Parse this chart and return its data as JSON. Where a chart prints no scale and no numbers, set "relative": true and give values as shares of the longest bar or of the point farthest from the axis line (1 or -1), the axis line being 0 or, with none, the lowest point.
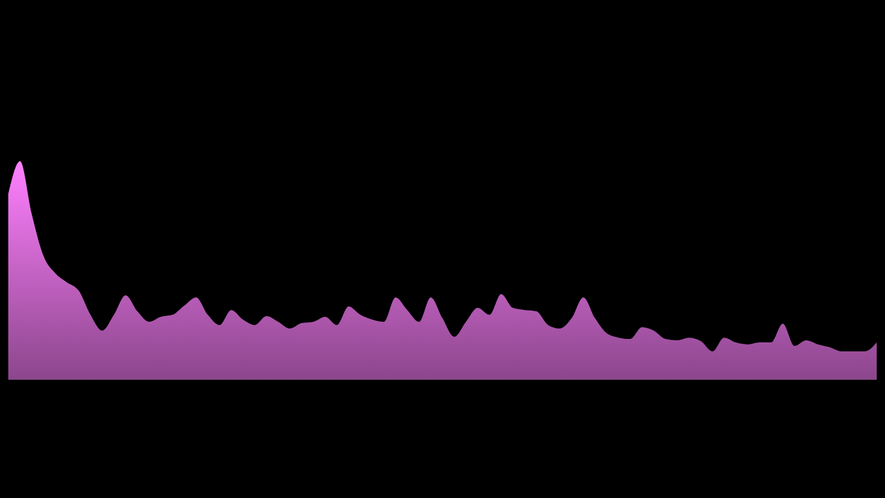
{
  "chart_data": {
    "type": "area",
    "relative": true,
    "categories": [
      null,
      null,
      null,
      null,
      null,
      null,
      null,
      null,
      null,
      null,
      null,
      null,
      null,
      null,
      null,
      null,
      null,
      null,
      null,
      null,
      null,
      null,
      null,
      null,
      null,
      null,
      null,
      null,
      null,
      null,
      null,
      null,
      null,
      null,
      null,
      null,
      null,
      null,
      null,
      null,
      null,
      null,
      null,
      null,
      null,
      null,
      null,
      null,
      null,
      null,
      null,
      null,
      null,
      null,
      null,
      null,
      null,
      null,
      null,
      null,
      null,
      null,
      null,
      null,
      null,
      null,
      null,
      null,
      null,
      null,
      null,
      null,
      null,
      null,
      null
    ],
    "series": [
      {
        "color": "#ff80ff",
        "values": [
          0.851,
          1,
          0.756,
          0.565,
          0.486,
          0.444,
          0.406,
          0.295,
          0.222,
          0.295,
          0.384,
          0.311,
          0.263,
          0.286,
          0.295,
          0.337,
          0.375,
          0.295,
          0.248,
          0.317,
          0.273,
          0.248,
          0.289,
          0.263,
          0.232,
          0.257,
          0.263,
          0.286,
          0.248,
          0.333,
          0.295,
          0.273,
          0.263,
          0.375,
          0.317,
          0.263,
          0.375,
          0.279,
          0.194,
          0.263,
          0.327,
          0.295,
          0.39,
          0.327,
          0.317,
          0.311,
          0.248,
          0.232,
          0.279,
          0.375,
          0.279,
          0.21,
          0.19,
          0.184,
          0.238,
          0.222,
          0.184,
          0.178,
          0.19,
          0.175,
          0.127,
          0.19,
          0.168,
          0.159,
          0.168,
          0.168,
          0.254,
          0.152,
          0.178,
          0.159,
          0.146,
          0.127,
          0.127,
          0.127,
          0.168
        ]
      }
    ]
  }
}
